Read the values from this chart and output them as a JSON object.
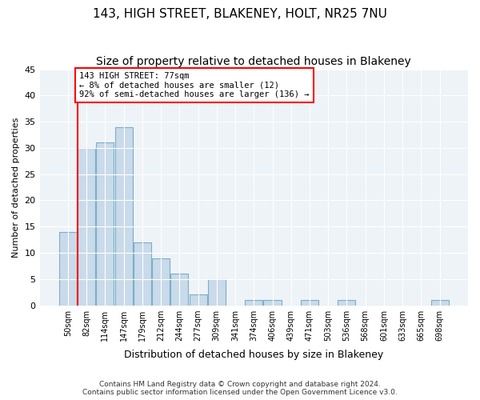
{
  "title": "143, HIGH STREET, BLAKENEY, HOLT, NR25 7NU",
  "subtitle": "Size of property relative to detached houses in Blakeney",
  "xlabel": "Distribution of detached houses by size in Blakeney",
  "ylabel": "Number of detached properties",
  "categories": [
    "50sqm",
    "82sqm",
    "114sqm",
    "147sqm",
    "179sqm",
    "212sqm",
    "244sqm",
    "277sqm",
    "309sqm",
    "341sqm",
    "374sqm",
    "406sqm",
    "439sqm",
    "471sqm",
    "503sqm",
    "536sqm",
    "568sqm",
    "601sqm",
    "633sqm",
    "665sqm",
    "698sqm"
  ],
  "values": [
    14,
    30,
    31,
    34,
    12,
    9,
    6,
    2,
    5,
    0,
    1,
    1,
    0,
    1,
    0,
    1,
    0,
    0,
    0,
    0,
    1
  ],
  "bar_color": "#c9daea",
  "bar_edge_color": "#7aaec8",
  "property_label": "143 HIGH STREET: 77sqm",
  "annotation_line1": "← 8% of detached houses are smaller (12)",
  "annotation_line2": "92% of semi-detached houses are larger (136) →",
  "annotation_box_color": "white",
  "annotation_box_edge_color": "red",
  "vline_color": "red",
  "ylim": [
    0,
    45
  ],
  "yticks": [
    0,
    5,
    10,
    15,
    20,
    25,
    30,
    35,
    40,
    45
  ],
  "bg_color": "#eef3f7",
  "footer_line1": "Contains HM Land Registry data © Crown copyright and database right 2024.",
  "footer_line2": "Contains public sector information licensed under the Open Government Licence v3.0.",
  "title_fontsize": 11,
  "subtitle_fontsize": 10
}
